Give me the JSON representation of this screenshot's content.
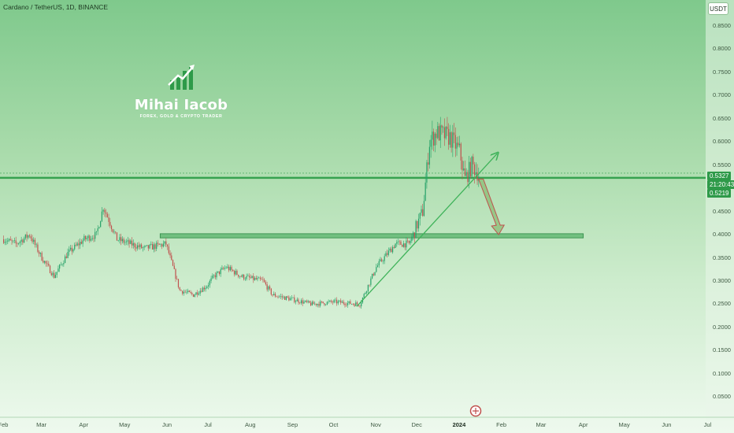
{
  "header": {
    "symbol_title": "Cardano / TetherUS, 1D, BINANCE",
    "currency_label": "USDT"
  },
  "logo": {
    "name": "Mihai Iacob",
    "tagline": "FOREX, GOLD & CRYPTO TRADER"
  },
  "price_scale": {
    "last_price": "0.5327",
    "countdown": "21:20:43",
    "prev_price": "0.5219"
  },
  "colors": {
    "up_candle": "#26a269",
    "down_candle": "#c0504d",
    "support_zone": "#57b36a",
    "horizontal_line": "#36a24f",
    "trend_line": "#3fb35a",
    "forecast_arrow": "#c0504d",
    "price_tag": "#2e9a49"
  },
  "chart_data": {
    "type": "candlestick",
    "title": "Cardano / TetherUS, 1D, BINANCE",
    "x_start": "2023-02-01",
    "x_tick_labels": [
      "Feb",
      "Mar",
      "Apr",
      "May",
      "Jun",
      "Jul",
      "Aug",
      "Sep",
      "Oct",
      "Nov",
      "Dec",
      "2024",
      "Feb",
      "Mar",
      "Apr",
      "May",
      "Jun",
      "Jul"
    ],
    "y_tick_labels": [
      "0.8500",
      "0.8000",
      "0.7500",
      "0.7000",
      "0.6500",
      "0.6000",
      "0.5500",
      "0.4500",
      "0.4000",
      "0.3500",
      "0.3000",
      "0.2500",
      "0.2000",
      "0.1500",
      "0.1000",
      "0.0500"
    ],
    "ylim": [
      0.0,
      0.87
    ],
    "price_path": [
      [
        "2023-02-01",
        0.39
      ],
      [
        "2023-02-10",
        0.38
      ],
      [
        "2023-02-20",
        0.4
      ],
      [
        "2023-03-01",
        0.35
      ],
      [
        "2023-03-10",
        0.31
      ],
      [
        "2023-03-20",
        0.36
      ],
      [
        "2023-04-01",
        0.39
      ],
      [
        "2023-04-10",
        0.4
      ],
      [
        "2023-04-15",
        0.46
      ],
      [
        "2023-04-25",
        0.39
      ],
      [
        "2023-05-05",
        0.38
      ],
      [
        "2023-05-15",
        0.37
      ],
      [
        "2023-05-31",
        0.38
      ],
      [
        "2023-06-10",
        0.28
      ],
      [
        "2023-06-20",
        0.27
      ],
      [
        "2023-06-30",
        0.29
      ],
      [
        "2023-07-05",
        0.31
      ],
      [
        "2023-07-14",
        0.33
      ],
      [
        "2023-07-25",
        0.31
      ],
      [
        "2023-08-10",
        0.3
      ],
      [
        "2023-08-17",
        0.27
      ],
      [
        "2023-09-01",
        0.26
      ],
      [
        "2023-09-15",
        0.25
      ],
      [
        "2023-10-01",
        0.255
      ],
      [
        "2023-10-20",
        0.25
      ],
      [
        "2023-11-01",
        0.33
      ],
      [
        "2023-11-15",
        0.38
      ],
      [
        "2023-11-25",
        0.38
      ],
      [
        "2023-12-05",
        0.45
      ],
      [
        "2023-12-10",
        0.6
      ],
      [
        "2023-12-15",
        0.62
      ],
      [
        "2023-12-25",
        0.61
      ],
      [
        "2024-01-01",
        0.58
      ],
      [
        "2024-01-05",
        0.52
      ],
      [
        "2024-01-10",
        0.55
      ],
      [
        "2024-01-15",
        0.53
      ]
    ],
    "last_price": 0.5327,
    "horizontal_level": 0.5327,
    "support_zone": {
      "x_from": "2023-05-27",
      "x_to": "2024-04-01",
      "y_from": 0.393,
      "y_to": 0.402
    },
    "trend_line": {
      "from": [
        "2023-10-18",
        0.245
      ],
      "to": [
        "2024-01-29",
        0.575
      ]
    },
    "forecast_arrow": {
      "from": [
        "2024-01-17",
        0.52
      ],
      "to": [
        "2024-01-30",
        0.4
      ]
    }
  }
}
